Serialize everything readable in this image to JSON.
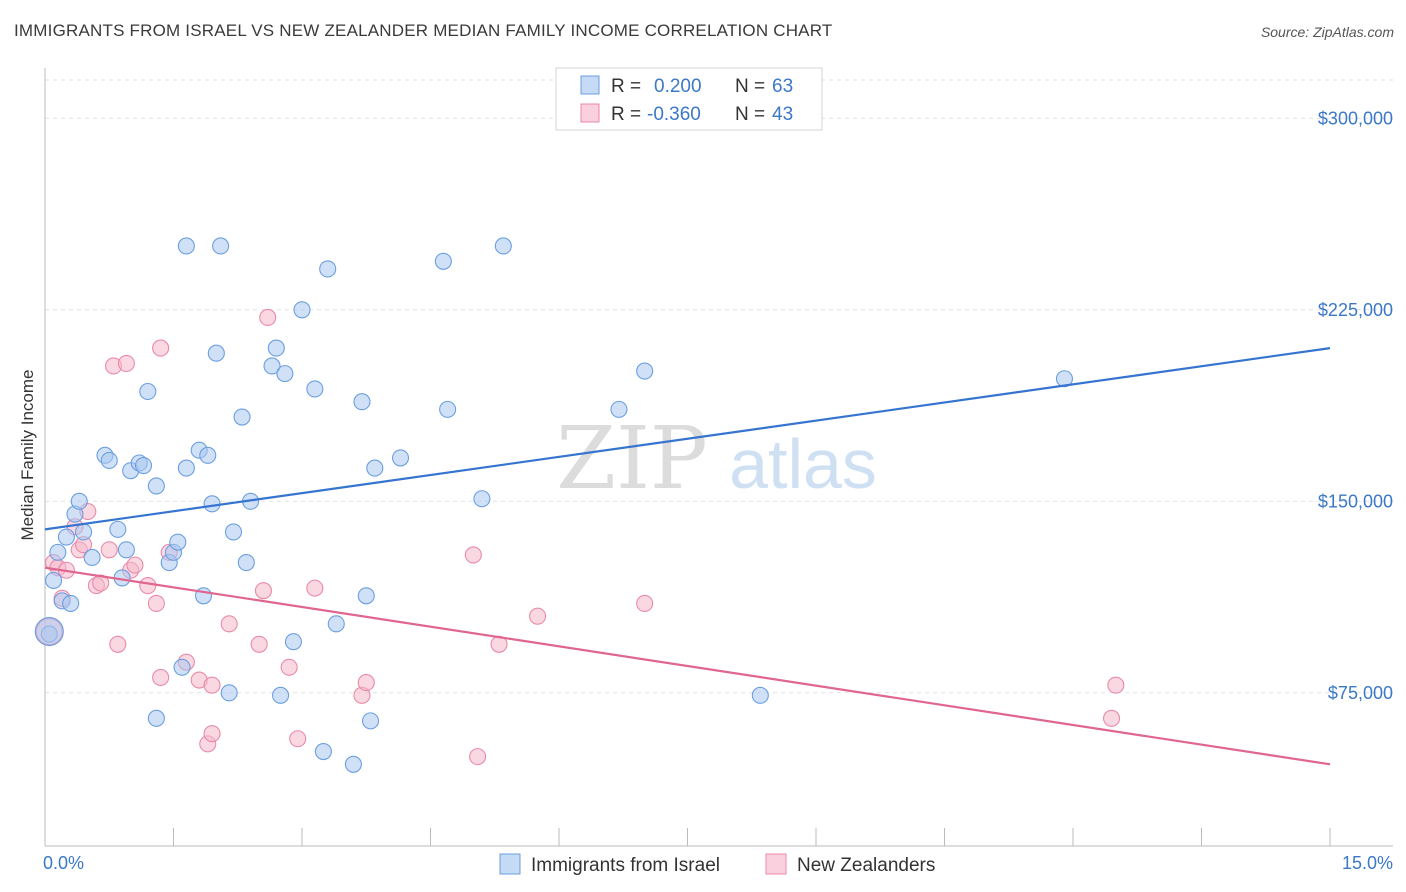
{
  "title": "IMMIGRANTS FROM ISRAEL VS NEW ZEALANDER MEDIAN FAMILY INCOME CORRELATION CHART",
  "source": "Source: ZipAtlas.com",
  "watermark": {
    "zip": "ZIP",
    "atlas": "atlas"
  },
  "colors": {
    "blue": "#3574d0",
    "blue_fill": "#a9c8f0",
    "pink": "#e0658f",
    "pink_fill": "#f5b8cb",
    "tick": "#3b78c8",
    "grid": "#dddddd"
  },
  "chart_data": {
    "type": "scatter",
    "xlabel": "",
    "ylabel": "Median Family Income",
    "xlim": [
      0,
      15
    ],
    "ylim": [
      15000,
      315000
    ],
    "x_tick_labels": [
      "0.0%",
      "15.0%"
    ],
    "y_ticks": [
      75000,
      150000,
      225000,
      300000
    ],
    "y_tick_labels": [
      "$75,000",
      "$150,000",
      "$225,000",
      "$300,000"
    ],
    "legend": {
      "rows": [
        {
          "r_label": "R =",
          "r_value": "0.200",
          "n_label": "N =",
          "n_value": "63"
        },
        {
          "r_label": "R =",
          "r_value": "-0.360",
          "n_label": "N =",
          "n_value": "43"
        }
      ]
    },
    "series": [
      {
        "name": "Immigrants from Israel",
        "color": "#3574d0",
        "trend": {
          "x": [
            0,
            15
          ],
          "y": [
            139000,
            210000
          ]
        },
        "points": [
          [
            0.1,
            119000
          ],
          [
            0.15,
            130000
          ],
          [
            0.2,
            111000
          ],
          [
            0.25,
            136000
          ],
          [
            0.3,
            110000
          ],
          [
            0.35,
            145000
          ],
          [
            0.4,
            150000
          ],
          [
            0.45,
            138000
          ],
          [
            0.55,
            128000
          ],
          [
            0.7,
            168000
          ],
          [
            0.75,
            166000
          ],
          [
            0.85,
            139000
          ],
          [
            0.9,
            120000
          ],
          [
            0.95,
            131000
          ],
          [
            1.0,
            162000
          ],
          [
            1.1,
            165000
          ],
          [
            1.15,
            164000
          ],
          [
            1.2,
            193000
          ],
          [
            1.3,
            65000
          ],
          [
            1.3,
            156000
          ],
          [
            1.45,
            126000
          ],
          [
            1.5,
            130000
          ],
          [
            1.55,
            134000
          ],
          [
            1.6,
            85000
          ],
          [
            1.65,
            163000
          ],
          [
            1.65,
            250000
          ],
          [
            1.8,
            170000
          ],
          [
            1.85,
            113000
          ],
          [
            1.9,
            168000
          ],
          [
            1.95,
            149000
          ],
          [
            2.0,
            208000
          ],
          [
            2.05,
            250000
          ],
          [
            2.15,
            75000
          ],
          [
            2.2,
            138000
          ],
          [
            2.3,
            183000
          ],
          [
            2.35,
            126000
          ],
          [
            2.4,
            150000
          ],
          [
            2.65,
            203000
          ],
          [
            2.7,
            210000
          ],
          [
            2.8,
            200000
          ],
          [
            2.75,
            74000
          ],
          [
            2.9,
            95000
          ],
          [
            3.0,
            225000
          ],
          [
            3.15,
            194000
          ],
          [
            3.25,
            52000
          ],
          [
            3.3,
            241000
          ],
          [
            3.4,
            102000
          ],
          [
            3.6,
            47000
          ],
          [
            3.7,
            189000
          ],
          [
            3.75,
            113000
          ],
          [
            3.8,
            64000
          ],
          [
            3.85,
            163000
          ],
          [
            4.15,
            167000
          ],
          [
            4.65,
            244000
          ],
          [
            4.7,
            186000
          ],
          [
            5.1,
            151000
          ],
          [
            5.35,
            250000
          ],
          [
            6.7,
            186000
          ],
          [
            7.0,
            201000
          ],
          [
            8.35,
            74000
          ],
          [
            11.9,
            198000
          ],
          [
            0.05,
            98000
          ],
          [
            0.05,
            99000
          ]
        ]
      },
      {
        "name": "New Zealanders",
        "color": "#e0658f",
        "trend": {
          "x": [
            0,
            15
          ],
          "y": [
            124000,
            47000
          ]
        },
        "points": [
          [
            0.1,
            126000
          ],
          [
            0.15,
            124000
          ],
          [
            0.2,
            112000
          ],
          [
            0.25,
            123000
          ],
          [
            0.35,
            140000
          ],
          [
            0.4,
            131000
          ],
          [
            0.45,
            133000
          ],
          [
            0.5,
            146000
          ],
          [
            0.6,
            117000
          ],
          [
            0.65,
            118000
          ],
          [
            0.75,
            131000
          ],
          [
            0.8,
            203000
          ],
          [
            0.85,
            94000
          ],
          [
            0.95,
            204000
          ],
          [
            1.0,
            123000
          ],
          [
            1.05,
            125000
          ],
          [
            1.2,
            117000
          ],
          [
            1.3,
            110000
          ],
          [
            1.35,
            210000
          ],
          [
            1.35,
            81000
          ],
          [
            1.45,
            130000
          ],
          [
            1.65,
            87000
          ],
          [
            1.8,
            80000
          ],
          [
            1.9,
            55000
          ],
          [
            1.95,
            78000
          ],
          [
            1.95,
            59000
          ],
          [
            2.15,
            102000
          ],
          [
            2.5,
            94000
          ],
          [
            2.55,
            115000
          ],
          [
            2.6,
            222000
          ],
          [
            2.85,
            85000
          ],
          [
            2.95,
            57000
          ],
          [
            3.15,
            116000
          ],
          [
            3.7,
            74000
          ],
          [
            3.75,
            79000
          ],
          [
            5.0,
            129000
          ],
          [
            5.05,
            50000
          ],
          [
            5.3,
            94000
          ],
          [
            5.75,
            105000
          ],
          [
            7.0,
            110000
          ],
          [
            12.45,
            65000
          ],
          [
            12.5,
            78000
          ],
          [
            0.05,
            99000
          ]
        ]
      }
    ]
  }
}
